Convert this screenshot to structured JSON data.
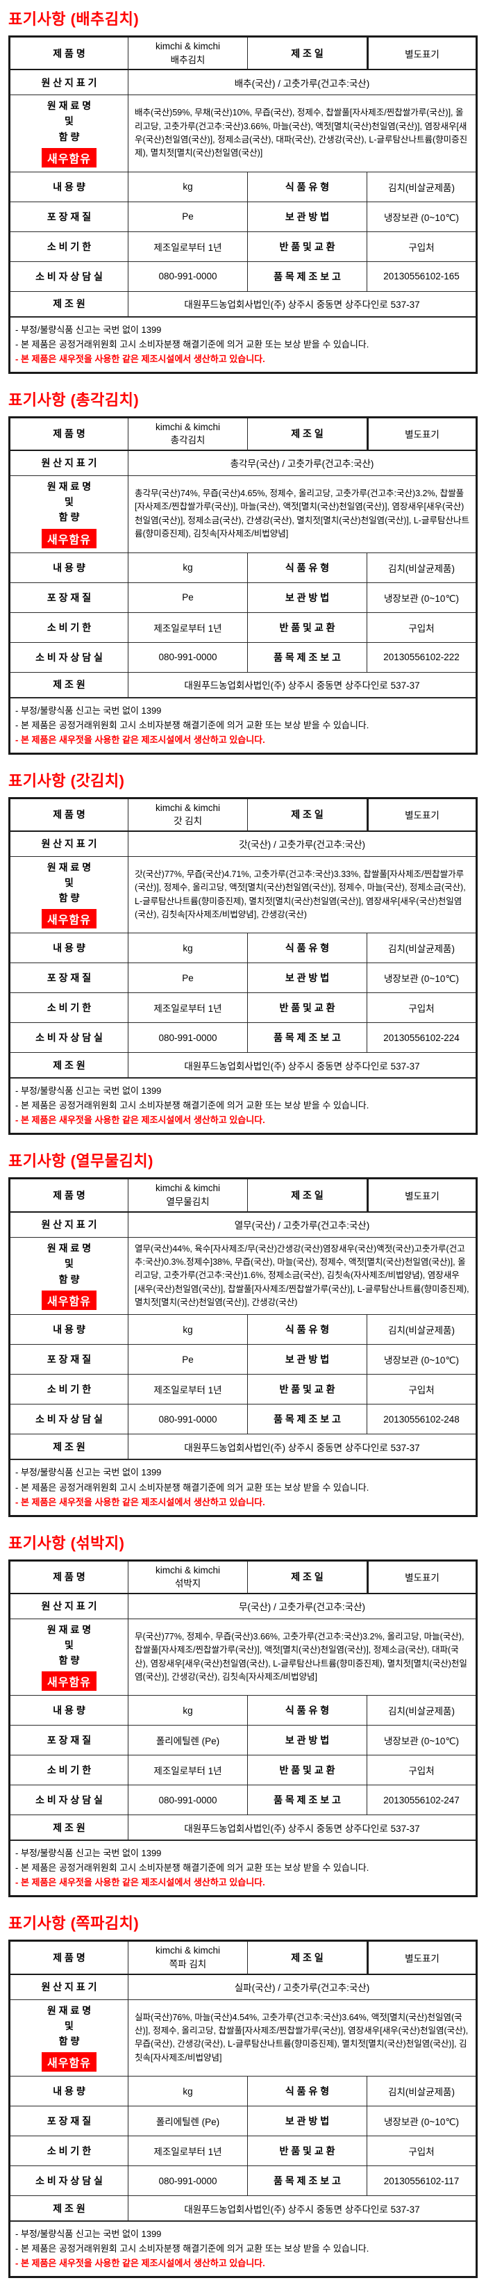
{
  "common": {
    "labels": {
      "product": "제 품 명",
      "mfg_date": "제 조 일",
      "origin": "원 산 지 표 기",
      "ingredients_1": "원 재 료 명",
      "ingredients_2": "및",
      "ingredients_3": "함 량",
      "net_weight": "내 용 량",
      "food_type": "식 품 유 형",
      "packaging": "포 장 재 질",
      "storage": "보 관 방 법",
      "shelf_life": "소 비 기 한",
      "returns": "반 품 및 교 환",
      "consumer_center": "소 비 자 상 담 실",
      "report_no": "품 목 제 조 보 고",
      "manufacturer": "제 조 원"
    },
    "values": {
      "brand_line": "kimchi & kimchi",
      "separate_mark": "별도표기",
      "net_weight": "kg",
      "food_type": "김치(비살균제품)",
      "storage": "냉장보관 (0~10℃)",
      "shelf_life": "제조일로부터 1년",
      "returns": "구입처",
      "phone": "080-991-0000",
      "manufacturer": "대원푸드농업회사법인(주) 상주시 중동면 상주다인로 537-37",
      "shrimp_badge": "새우함유"
    },
    "footer": {
      "line1": "- 부정/불량식품 신고는 국번 없이 1399",
      "line2": "- 본 제품은 공정거래위원회 고시 소비자분쟁 해결기준에 의거 교환 또는 보상 받을 수 있습니다.",
      "line3": "- 본 제품은 새우젓을 사용한 같은 제조시설에서 생산하고 있습니다."
    },
    "colors": {
      "accent_red": "#ff0000",
      "border": "#1a1a1a",
      "badge_bg": "#ff0000",
      "badge_text": "#ffffff"
    }
  },
  "sections": [
    {
      "title": "표기사항 (배추김치)",
      "product_kr": "배추김치",
      "origin": "배추(국산) / 고춧가루(건고추:국산)",
      "ingredients": "배추(국산)59%, 무채(국산)10%, 무즙(국산), 정제수, 찹쌀풀[자사제조/찐찹쌀가루(국산)], 올리고당, 고춧가루(건고추:국산)3.66%, 마늘(국산), 액젓[멸치(국산)천일염(국산)], 염장새우[새우(국산)천일염(국산)], 정제소금(국산), 대파(국산), 간생강(국산), L-글루탐산나트륨(향미증진제), 멸치젓[멸치(국산)천일염(국산)]",
      "packaging": "Pe",
      "report_no": "20130556102-165"
    },
    {
      "title": "표기사항 (총각김치)",
      "product_kr": "총각김치",
      "origin": "총각무(국산) / 고춧가루(건고추:국산)",
      "ingredients": "총각무(국산)74%, 무즙(국산)4.65%, 정제수, 올리고당, 고춧가루(건고추:국산)3.2%, 찹쌀풀[자사제조/찐찹쌀가루(국산)], 마늘(국산), 액젓[멸치(국산)천일염(국산)], 염장새우[새우(국산)천일염(국산)], 정제소금(국산), 간생강(국산), 멸치젓[멸치(국산)천일염(국산)], L-글루탐산나트륨(향미증진제), 김칫속[자사제조/비법양념]",
      "packaging": "Pe",
      "report_no": "20130556102-222"
    },
    {
      "title": "표기사항 (갓김치)",
      "product_kr": "갓 김치",
      "origin": "갓(국산) / 고춧가루(건고추:국산)",
      "ingredients": "갓(국산)77%, 무즙(국산)4.71%, 고춧가루(건고추:국산)3.33%, 찹쌀풀[자사제조/찐찹쌀가루(국산)], 정제수, 올리고당, 액젓[멸치(국산)천일염(국산)], 정제수, 마늘(국산), 정제소금(국산), L-글루탐산나트륨(향미증진제), 멸치젓[멸치(국산)천일염(국산)], 염장새우[새우(국산)천일염(국산), 김칫속[자사제조/비법양념], 간생강(국산)",
      "packaging": "Pe",
      "report_no": "20130556102-224"
    },
    {
      "title": "표기사항 (열무물김치)",
      "product_kr": "열무물김치",
      "origin": "열무(국산) / 고춧가루(건고추:국산)",
      "ingredients": "열무(국산)44%,  육수[자사제조/무(국산)간생강(국산)염장새우(국산)액젓(국산)고춧가루(건고추:국산)0.3%.정제수]38%, 무즙(국산), 마늘(국산), 정제수, 액젓[멸치(국산)천일염(국산)], 올리고당, 고춧가루(건고추:국산)1.6%, 정제소금(국산), 김칫속(자사제조/비법양념), 염장새우[새우(국산)천일염(국산)], 찹쌀풀[자사제조/찐찹쌀가루(국산)], L-글루탐산나트륨(향미증진제), 멸치젓[멸치(국산)천일염(국산)], 간생강(국산)",
      "packaging": "Pe",
      "report_no": "20130556102-248"
    },
    {
      "title": "표기사항 (섞박지)",
      "product_kr": "섞박지",
      "origin": "무(국산) / 고춧가루(건고추:국산)",
      "ingredients": "무(국산)77%, 정제수,  무즙(국산)3.66%, 고춧가루(건고추:국산)3.2%, 올리고당, 마늘(국산), 찹쌀풀[자사제조/찐찹쌀가루(국산)],  액젓[멸치(국산)천일염(국산)], 정제소금(국산), 대파(국산), 염장새우[새우(국산)천일염(국산),  L-글루탐산나트륨(향미증진제),  멸치젓[멸치(국산)천일염(국산)], 간생강(국산), 김칫속[자사제조/비법양념]",
      "packaging": "폴리에틸렌 (Pe)",
      "report_no": "20130556102-247"
    },
    {
      "title": "표기사항 (쪽파김치)",
      "product_kr": "쪽파 김치",
      "origin": "실파(국산) / 고춧가루(건고추:국산)",
      "ingredients": "실파(국산)76%, 마늘(국산)4.54%,  고춧가루(건고추:국산)3.64%, 액젓[멸치(국산)천일염(국산)], 정제수, 올리고당,  찹쌀풀[자사제조/찐찹쌀가루(국산)], 염장새우[새우(국산)천일염(국산), 무즙(국산), 간생강(국산), L-글루탐산나트륨(향미증진제), 멸치젓[멸치(국산)천일염(국산)], 김칫속[자사제조/비법양념]",
      "packaging": "폴리에틸렌 (Pe)",
      "report_no": "20130556102-117"
    }
  ]
}
